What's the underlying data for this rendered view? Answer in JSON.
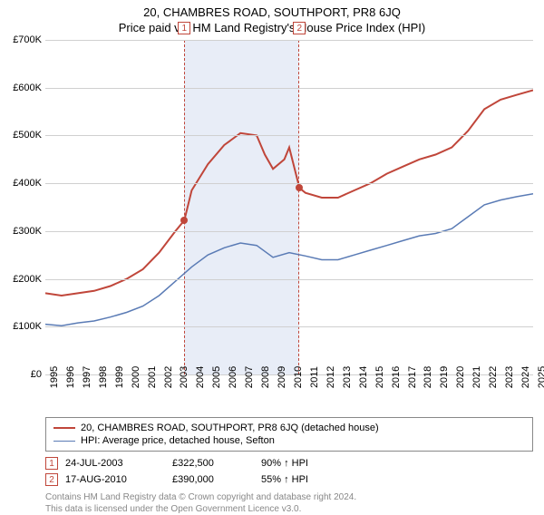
{
  "title": "20, CHAMBRES ROAD, SOUTHPORT, PR8 6JQ",
  "subtitle": "Price paid vs. HM Land Registry's House Price Index (HPI)",
  "chart": {
    "type": "line",
    "background_color": "#ffffff",
    "grid_color": "#d0d0d0",
    "xlim": [
      1995,
      2025
    ],
    "ylim": [
      0,
      700000
    ],
    "ytick_step": 100000,
    "yticks": [
      0,
      100000,
      200000,
      300000,
      400000,
      500000,
      600000,
      700000
    ],
    "ytick_labels": [
      "£0",
      "£100K",
      "£200K",
      "£300K",
      "£400K",
      "£500K",
      "£600K",
      "£700K"
    ],
    "xticks": [
      1995,
      1996,
      1997,
      1998,
      1999,
      2000,
      2001,
      2002,
      2003,
      2004,
      2005,
      2006,
      2007,
      2008,
      2009,
      2010,
      2011,
      2012,
      2013,
      2014,
      2015,
      2016,
      2017,
      2018,
      2019,
      2020,
      2021,
      2022,
      2023,
      2024,
      2025
    ],
    "shaded_band": {
      "x_start": 2003.55,
      "x_end": 2010.63,
      "fill": "#e8edf7",
      "dash_color": "#c0463a"
    },
    "series": [
      {
        "name": "property",
        "label": "20, CHAMBRES ROAD, SOUTHPORT, PR8 6JQ (detached house)",
        "color": "#c0463a",
        "line_width": 2,
        "data": [
          [
            1995,
            170000
          ],
          [
            1996,
            165000
          ],
          [
            1997,
            170000
          ],
          [
            1998,
            175000
          ],
          [
            1999,
            185000
          ],
          [
            2000,
            200000
          ],
          [
            2001,
            220000
          ],
          [
            2002,
            255000
          ],
          [
            2003,
            300000
          ],
          [
            2003.55,
            322500
          ],
          [
            2004,
            385000
          ],
          [
            2005,
            440000
          ],
          [
            2006,
            480000
          ],
          [
            2007,
            505000
          ],
          [
            2008,
            500000
          ],
          [
            2008.5,
            460000
          ],
          [
            2009,
            430000
          ],
          [
            2009.7,
            450000
          ],
          [
            2010,
            475000
          ],
          [
            2010.63,
            390000
          ],
          [
            2011,
            380000
          ],
          [
            2012,
            370000
          ],
          [
            2013,
            370000
          ],
          [
            2014,
            385000
          ],
          [
            2015,
            400000
          ],
          [
            2016,
            420000
          ],
          [
            2017,
            435000
          ],
          [
            2018,
            450000
          ],
          [
            2019,
            460000
          ],
          [
            2020,
            475000
          ],
          [
            2021,
            510000
          ],
          [
            2022,
            555000
          ],
          [
            2023,
            575000
          ],
          [
            2024,
            585000
          ],
          [
            2025,
            595000
          ]
        ]
      },
      {
        "name": "hpi",
        "label": "HPI: Average price, detached house, Sefton",
        "color": "#5a7bb5",
        "line_width": 1.5,
        "data": [
          [
            1995,
            105000
          ],
          [
            1996,
            102000
          ],
          [
            1997,
            108000
          ],
          [
            1998,
            112000
          ],
          [
            1999,
            120000
          ],
          [
            2000,
            130000
          ],
          [
            2001,
            143000
          ],
          [
            2002,
            165000
          ],
          [
            2003,
            195000
          ],
          [
            2004,
            225000
          ],
          [
            2005,
            250000
          ],
          [
            2006,
            265000
          ],
          [
            2007,
            275000
          ],
          [
            2008,
            270000
          ],
          [
            2009,
            245000
          ],
          [
            2010,
            255000
          ],
          [
            2011,
            248000
          ],
          [
            2012,
            240000
          ],
          [
            2013,
            240000
          ],
          [
            2014,
            250000
          ],
          [
            2015,
            260000
          ],
          [
            2016,
            270000
          ],
          [
            2017,
            280000
          ],
          [
            2018,
            290000
          ],
          [
            2019,
            295000
          ],
          [
            2020,
            305000
          ],
          [
            2021,
            330000
          ],
          [
            2022,
            355000
          ],
          [
            2023,
            365000
          ],
          [
            2024,
            372000
          ],
          [
            2025,
            378000
          ]
        ]
      }
    ],
    "sale_markers": [
      {
        "id": "1",
        "x": 2003.55,
        "y": 322500,
        "box_top": true
      },
      {
        "id": "2",
        "x": 2010.63,
        "y": 390000,
        "box_top": true
      }
    ],
    "marker_box_color": "#c0463a",
    "label_fontsize": 11,
    "title_fontsize": 13
  },
  "legend": {
    "items": [
      {
        "color": "#c0463a",
        "width": 2,
        "label": "20, CHAMBRES ROAD, SOUTHPORT, PR8 6JQ (detached house)"
      },
      {
        "color": "#5a7bb5",
        "width": 1.5,
        "label": "HPI: Average price, detached house, Sefton"
      }
    ]
  },
  "sales": [
    {
      "id": "1",
      "date": "24-JUL-2003",
      "price": "£322,500",
      "pct": "90% ↑ HPI"
    },
    {
      "id": "2",
      "date": "17-AUG-2010",
      "price": "£390,000",
      "pct": "55% ↑ HPI"
    }
  ],
  "footer": {
    "line1": "Contains HM Land Registry data © Crown copyright and database right 2024.",
    "line2": "This data is licensed under the Open Government Licence v3.0."
  }
}
